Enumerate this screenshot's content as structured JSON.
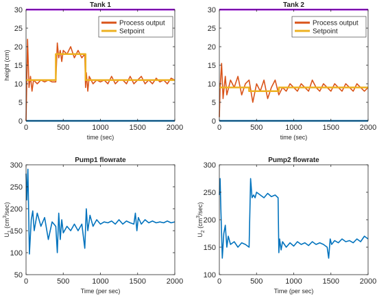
{
  "chart_data": [
    {
      "type": "line",
      "title": "Tank 1",
      "xlabel": "time (sec)",
      "ylabel": "height (cm)",
      "xlim": [
        0,
        2000
      ],
      "ylim": [
        0,
        30
      ],
      "xticks": [
        0,
        500,
        1000,
        1500,
        2000
      ],
      "yticks": [
        0,
        5,
        10,
        15,
        20,
        25,
        30
      ],
      "legend": {
        "position": "top-right",
        "entries": [
          "Process output",
          "Setpoint"
        ]
      },
      "series": [
        {
          "name": "Process output",
          "color": "#d95319",
          "x": [
            0,
            20,
            40,
            60,
            80,
            100,
            150,
            200,
            250,
            300,
            350,
            400,
            420,
            440,
            460,
            480,
            500,
            550,
            600,
            650,
            700,
            750,
            790,
            800,
            810,
            830,
            850,
            900,
            950,
            1000,
            1050,
            1100,
            1150,
            1200,
            1250,
            1300,
            1350,
            1400,
            1450,
            1500,
            1550,
            1600,
            1650,
            1700,
            1750,
            1800,
            1850,
            1900,
            1950,
            2000
          ],
          "y": [
            0,
            22,
            9,
            12,
            8,
            11,
            10,
            11,
            10.5,
            11,
            10.5,
            10.5,
            21,
            17,
            19,
            16,
            19,
            18,
            20,
            17,
            19,
            17,
            18,
            9,
            13,
            8,
            12,
            10,
            11,
            10.5,
            11,
            10,
            12,
            10,
            11,
            11,
            10,
            12,
            10,
            11,
            12,
            10,
            11,
            10,
            11.5,
            10.5,
            11,
            10,
            11.5,
            11
          ]
        },
        {
          "name": "Setpoint",
          "color": "#edb120",
          "x": [
            0,
            400,
            400,
            800,
            800,
            2000
          ],
          "y": [
            11,
            11,
            18,
            18,
            11,
            11
          ]
        }
      ],
      "reference_lines": [
        {
          "y": 30,
          "color": "#b000ff"
        },
        {
          "y": 0,
          "color": "#0072bd"
        }
      ]
    },
    {
      "type": "line",
      "title": "Tank 2",
      "xlabel": "time (sec)",
      "ylabel": "",
      "xlim": [
        0,
        2000
      ],
      "ylim": [
        0,
        30
      ],
      "xticks": [
        0,
        500,
        1000,
        1500,
        2000
      ],
      "yticks": [
        0,
        5,
        10,
        15,
        20,
        25,
        30
      ],
      "legend": {
        "position": "top-right",
        "entries": [
          "Process output",
          "Setpoint"
        ]
      },
      "series": [
        {
          "name": "Process output",
          "color": "#d95319",
          "x": [
            0,
            10,
            30,
            50,
            80,
            100,
            150,
            200,
            250,
            300,
            350,
            400,
            450,
            500,
            550,
            600,
            650,
            700,
            750,
            800,
            850,
            900,
            950,
            1000,
            1050,
            1100,
            1150,
            1200,
            1250,
            1300,
            1350,
            1400,
            1450,
            1500,
            1550,
            1600,
            1650,
            1700,
            1750,
            1800,
            1850,
            1900,
            1950,
            2000
          ],
          "y": [
            1,
            9,
            15.5,
            6,
            12,
            7,
            11,
            9,
            12,
            7,
            10,
            11,
            5,
            10,
            8,
            11,
            6,
            9,
            11,
            7,
            9,
            8,
            10,
            9,
            8,
            10,
            9,
            8,
            11,
            9,
            8,
            10,
            9,
            8,
            10,
            9,
            8,
            10,
            9,
            8,
            10,
            9,
            8,
            9
          ]
        },
        {
          "name": "Setpoint",
          "color": "#edb120",
          "x": [
            0,
            400,
            400,
            800,
            800,
            2000
          ],
          "y": [
            9,
            9,
            8,
            8,
            9,
            9
          ]
        }
      ],
      "reference_lines": [
        {
          "y": 30,
          "color": "#b000ff"
        },
        {
          "y": 0,
          "color": "#0072bd"
        }
      ]
    },
    {
      "type": "line",
      "title": "Pump1 flowrate",
      "xlabel": "Time (per sec)",
      "ylabel": "U1 (cm3/sec)",
      "xlim": [
        0,
        2000
      ],
      "ylim": [
        50,
        300
      ],
      "xticks": [
        0,
        500,
        1000,
        1500,
        2000
      ],
      "yticks": [
        50,
        100,
        150,
        200,
        250,
        300
      ],
      "series": [
        {
          "name": "",
          "color": "#0072bd",
          "x": [
            0,
            10,
            25,
            45,
            70,
            90,
            110,
            150,
            200,
            250,
            300,
            350,
            400,
            420,
            440,
            460,
            480,
            500,
            550,
            600,
            650,
            700,
            750,
            790,
            810,
            830,
            860,
            900,
            950,
            1000,
            1050,
            1100,
            1150,
            1200,
            1250,
            1300,
            1350,
            1400,
            1450,
            1470,
            1490,
            1510,
            1550,
            1600,
            1650,
            1700,
            1750,
            1800,
            1850,
            1900,
            1950,
            2000
          ],
          "y": [
            280,
            220,
            290,
            97,
            175,
            195,
            150,
            190,
            160,
            180,
            130,
            170,
            160,
            100,
            190,
            130,
            175,
            145,
            160,
            150,
            165,
            150,
            165,
            110,
            200,
            150,
            185,
            160,
            175,
            165,
            170,
            168,
            172,
            165,
            175,
            165,
            172,
            168,
            165,
            190,
            150,
            180,
            165,
            175,
            168,
            172,
            168,
            170,
            168,
            172,
            168,
            170
          ]
        }
      ]
    },
    {
      "type": "line",
      "title": "Pump2 flowrate",
      "xlabel": "Time (per sec)",
      "ylabel": "U2 (cm3/sec)",
      "xlim": [
        0,
        2000
      ],
      "ylim": [
        100,
        300
      ],
      "xticks": [
        0,
        500,
        1000,
        1500,
        2000
      ],
      "yticks": [
        100,
        150,
        200,
        250,
        300
      ],
      "series": [
        {
          "name": "",
          "color": "#0072bd",
          "x": [
            0,
            10,
            20,
            40,
            60,
            80,
            100,
            120,
            150,
            200,
            250,
            300,
            350,
            400,
            420,
            440,
            460,
            480,
            500,
            550,
            600,
            650,
            700,
            750,
            790,
            800,
            810,
            830,
            850,
            900,
            950,
            1000,
            1050,
            1100,
            1150,
            1200,
            1250,
            1300,
            1350,
            1400,
            1450,
            1470,
            1490,
            1510,
            1550,
            1600,
            1650,
            1700,
            1750,
            1800,
            1850,
            1900,
            1950,
            2000
          ],
          "y": [
            245,
            275,
            220,
            130,
            175,
            190,
            150,
            170,
            155,
            160,
            150,
            158,
            155,
            150,
            275,
            240,
            245,
            240,
            250,
            245,
            240,
            248,
            242,
            245,
            240,
            140,
            165,
            145,
            160,
            150,
            158,
            152,
            160,
            155,
            158,
            153,
            160,
            155,
            158,
            155,
            150,
            130,
            165,
            155,
            162,
            158,
            165,
            160,
            162,
            158,
            165,
            160,
            170,
            165
          ]
        }
      ]
    }
  ]
}
